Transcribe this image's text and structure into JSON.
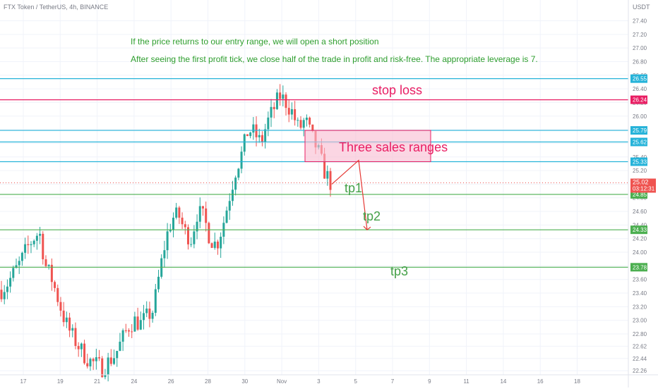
{
  "header": {
    "symbol_title": "FTX Token / TetherUS, 4h, BINANCE",
    "currency": "USDT"
  },
  "notes": [
    "If the price returns to our entry range, we will open a short position",
    "After seeing the first profit tick, we close half of the trade in profit and risk-free. The appropriate leverage is 7."
  ],
  "colors": {
    "up": "#26a69a",
    "down": "#ef5350",
    "note_text": "#2e9e2e",
    "cyan_line": "#26b3d9",
    "stop_line": "#e91e63",
    "tp_line": "#4caf50",
    "range_fill": "#f8bbd0",
    "range_border": "#e91e63",
    "arrow": "#e53935"
  },
  "chart_data": {
    "type": "candlestick",
    "x": [
      "17",
      "19",
      "21",
      "24",
      "26",
      "28",
      "30",
      "Nov",
      "3",
      "5",
      "7",
      "9",
      "11",
      "14",
      "16",
      "18"
    ],
    "y_ticks": [
      22.26,
      22.44,
      22.62,
      22.8,
      23.0,
      23.2,
      23.4,
      23.6,
      23.8,
      24.0,
      24.2,
      24.4,
      24.6,
      24.8,
      25.0,
      25.2,
      25.4,
      25.6,
      25.8,
      26.0,
      26.2,
      26.4,
      26.6,
      26.8,
      27.0,
      27.2,
      27.4
    ],
    "y_tick_labels": [
      "22.26",
      "22.44",
      "22.62",
      "22.80",
      "23.00",
      "23.20",
      "23.40",
      "23.60",
      "23.80",
      "24.00",
      "24.20",
      "24.40",
      "24.60",
      "24.80",
      "25.00",
      "25.20",
      "25.40",
      "25.60",
      "25.80",
      "26.00",
      "26.20",
      "26.40",
      "26.60",
      "26.80",
      "27.00",
      "27.20",
      "27.40"
    ],
    "ylim": [
      22.2,
      27.55
    ],
    "current_price": {
      "value": 25.02,
      "label": "25.02",
      "countdown": "03:12:31"
    },
    "levels": [
      {
        "value": 26.55,
        "label": "26.55",
        "kind": "cyan"
      },
      {
        "value": 26.24,
        "label": "26.24",
        "kind": "stop"
      },
      {
        "value": 25.79,
        "label": "25.79",
        "kind": "cyan"
      },
      {
        "value": 25.62,
        "label": "25.62",
        "kind": "cyan"
      },
      {
        "value": 25.33,
        "label": "25.33",
        "kind": "cyan"
      },
      {
        "value": 24.85,
        "label": "24.85",
        "kind": "tp"
      },
      {
        "value": 24.33,
        "label": "24.33",
        "kind": "tp"
      },
      {
        "value": 23.78,
        "label": "23.78",
        "kind": "tp"
      }
    ],
    "annotations": {
      "stop_loss": "stop loss",
      "sales_range": "Three sales ranges",
      "tp1": "tp1",
      "tp2": "tp2",
      "tp3": "tp3"
    },
    "sales_range": {
      "top": 25.79,
      "bottom": 25.33
    },
    "arrow_path": [
      25.0,
      25.35,
      24.33
    ],
    "close_path": [
      23.45,
      23.55,
      23.7,
      23.85,
      24.05,
      24.2,
      24.3,
      23.8,
      23.6,
      23.3,
      23.0,
      22.8,
      22.65,
      22.5,
      22.4,
      22.35,
      22.3,
      22.4,
      22.5,
      22.7,
      22.9,
      23.0,
      22.95,
      23.05,
      23.15,
      23.7,
      24.2,
      24.5,
      24.55,
      24.3,
      24.2,
      24.6,
      24.5,
      24.2,
      24.1,
      24.4,
      24.8,
      25.2,
      25.45,
      25.8,
      25.75,
      25.6,
      25.9,
      26.1,
      26.3,
      26.2,
      26.05,
      25.8,
      25.95,
      25.7,
      25.5,
      25.2,
      25.02
    ]
  }
}
